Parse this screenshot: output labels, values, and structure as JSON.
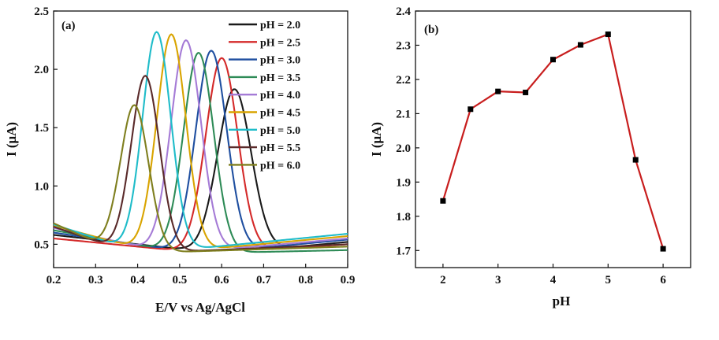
{
  "chart_data": [
    {
      "type": "line",
      "panel_label": "(a)",
      "xlabel": "E/V vs Ag/AgCl",
      "ylabel": "I (μA)",
      "xlim": [
        0.2,
        0.9
      ],
      "ylim": [
        0.3,
        2.5
      ],
      "xticks": [
        "0.2",
        "0.3",
        "0.4",
        "0.5",
        "0.6",
        "0.7",
        "0.8",
        "0.9"
      ],
      "yticks": [
        "0.5",
        "1.0",
        "1.5",
        "2.0",
        "2.5"
      ],
      "ytick_values": [
        0.5,
        1.0,
        1.5,
        2.0,
        2.5
      ],
      "legend_position": "top-right",
      "grid": false,
      "series": [
        {
          "name": "pH = 2.0",
          "color": "#1a1a1a",
          "peak_x": 0.63,
          "peak_y": 1.84,
          "width": 0.04,
          "start_y": 0.58,
          "end_y": 0.52
        },
        {
          "name": "pH = 2.5",
          "color": "#d42a2a",
          "peak_x": 0.6,
          "peak_y": 2.11,
          "width": 0.038,
          "start_y": 0.55,
          "end_y": 0.5
        },
        {
          "name": "pH = 3.0",
          "color": "#1f4fa0",
          "peak_x": 0.575,
          "peak_y": 2.17,
          "width": 0.037,
          "start_y": 0.6,
          "end_y": 0.54
        },
        {
          "name": "pH = 3.5",
          "color": "#2e8b57",
          "peak_x": 0.545,
          "peak_y": 2.16,
          "width": 0.036,
          "start_y": 0.62,
          "end_y": 0.45
        },
        {
          "name": "pH = 4.0",
          "color": "#a57bd6",
          "peak_x": 0.515,
          "peak_y": 2.26,
          "width": 0.036,
          "start_y": 0.64,
          "end_y": 0.55
        },
        {
          "name": "pH = 4.5",
          "color": "#d9a400",
          "peak_x": 0.48,
          "peak_y": 2.31,
          "width": 0.035,
          "start_y": 0.66,
          "end_y": 0.57
        },
        {
          "name": "pH = 5.0",
          "color": "#1fbcc9",
          "peak_x": 0.445,
          "peak_y": 2.33,
          "width": 0.034,
          "start_y": 0.67,
          "end_y": 0.59
        },
        {
          "name": "pH = 5.5",
          "color": "#5a2a2a",
          "peak_x": 0.418,
          "peak_y": 1.96,
          "width": 0.034,
          "start_y": 0.65,
          "end_y": 0.5
        },
        {
          "name": "pH = 6.0",
          "color": "#7f7f1f",
          "peak_x": 0.392,
          "peak_y": 1.71,
          "width": 0.034,
          "start_y": 0.68,
          "end_y": 0.48
        }
      ]
    },
    {
      "type": "line",
      "panel_label": "(b)",
      "xlabel": "pH",
      "ylabel": "I (μA)",
      "xlim": [
        1.5,
        6.5
      ],
      "ylim": [
        1.65,
        2.4
      ],
      "xticks": [
        "2",
        "3",
        "4",
        "5",
        "6"
      ],
      "xtick_values": [
        2,
        3,
        4,
        5,
        6
      ],
      "yticks": [
        "1.7",
        "1.8",
        "1.9",
        "2.0",
        "2.1",
        "2.2",
        "2.3",
        "2.4"
      ],
      "ytick_values": [
        1.7,
        1.8,
        1.9,
        2.0,
        2.1,
        2.2,
        2.3,
        2.4
      ],
      "grid": false,
      "line_color": "#c81e1e",
      "marker_color": "#000000",
      "x": [
        2.0,
        2.5,
        3.0,
        3.5,
        4.0,
        4.5,
        5.0,
        5.5,
        6.0
      ],
      "y": [
        1.845,
        2.113,
        2.165,
        2.162,
        2.258,
        2.301,
        2.332,
        1.965,
        1.705
      ]
    }
  ]
}
